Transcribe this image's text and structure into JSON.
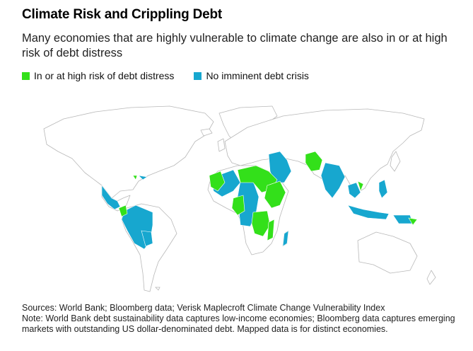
{
  "title": "Climate Risk and Crippling Debt",
  "subtitle": "Many economies that are highly vulnerable to climate change are also in or at high risk of debt distress",
  "legend": [
    {
      "label": "In or at high risk of debt distress",
      "color": "#33e01a"
    },
    {
      "label": "No imminent debt crisis",
      "color": "#17a7cf"
    }
  ],
  "colors": {
    "land": "#ffffff",
    "border": "#b8b8b8",
    "distress": "#33e01a",
    "no_crisis": "#17a7cf"
  },
  "footer": {
    "sources": "Sources: World Bank; Bloomberg data; Verisk Maplecroft Climate Change Vulnerability Index",
    "note": "Note: World Bank debt sustainability data captures low-income economies; Bloomberg data captures emerging markets with outstanding US dollar-denominated debt. Mapped data is for distinct economies."
  }
}
